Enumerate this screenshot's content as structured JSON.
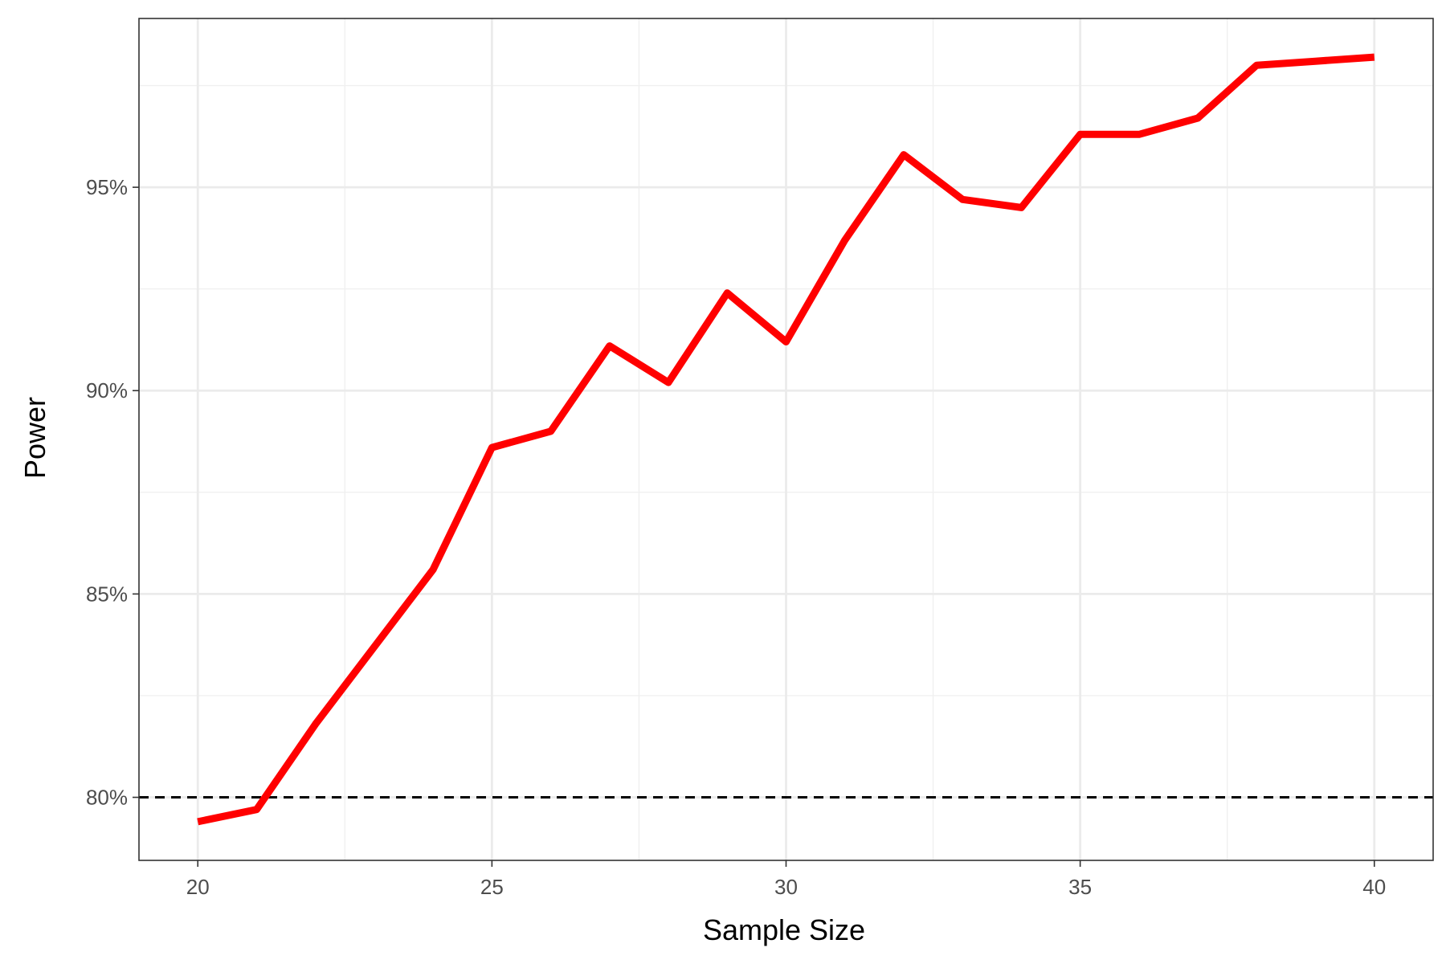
{
  "chart_data": {
    "type": "line",
    "title": "",
    "xlabel": "Sample Size",
    "ylabel": "Power",
    "xlim": [
      19,
      41
    ],
    "ylim": [
      0.7845,
      0.9915
    ],
    "x_ticks": [
      20,
      25,
      30,
      35,
      40
    ],
    "x_tick_labels": [
      "20",
      "25",
      "30",
      "35",
      "40"
    ],
    "y_ticks": [
      0.8,
      0.85,
      0.9,
      0.95
    ],
    "y_tick_labels": [
      "80%",
      "85%",
      "90%",
      "95%"
    ],
    "grid": true,
    "reference_line": {
      "y": 0.8,
      "style": "dashed",
      "color": "#000000"
    },
    "series": [
      {
        "color": "#ff0000",
        "x": [
          20,
          21,
          22,
          23,
          24,
          25,
          26,
          27,
          28,
          29,
          30,
          31,
          32,
          33,
          34,
          35,
          36,
          37,
          38,
          39,
          40
        ],
        "values": [
          0.794,
          0.797,
          0.818,
          0.837,
          0.856,
          0.886,
          0.89,
          0.911,
          0.902,
          0.924,
          0.912,
          0.937,
          0.958,
          0.947,
          0.945,
          0.963,
          0.963,
          0.967,
          0.98,
          0.981,
          0.982
        ]
      }
    ]
  }
}
